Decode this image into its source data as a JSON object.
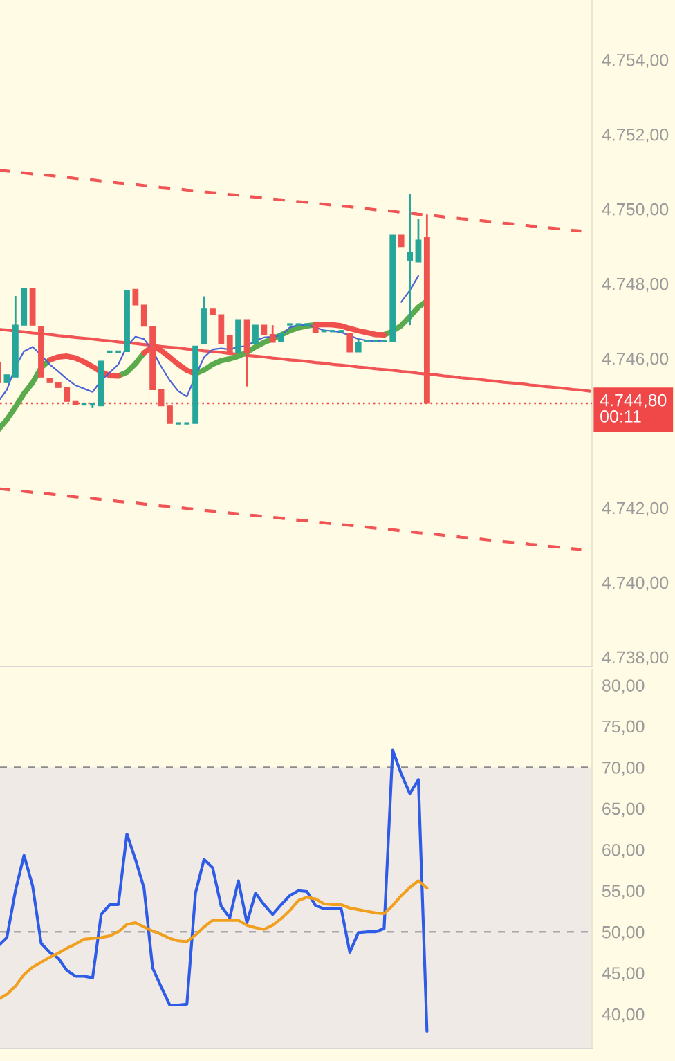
{
  "chart_data": [
    {
      "type": "candlestick",
      "categories": [
        null,
        null,
        null,
        null,
        null,
        null,
        null,
        null,
        null,
        null,
        null,
        null,
        null,
        null,
        null,
        null,
        null,
        null,
        null,
        null,
        null,
        null,
        null,
        null,
        null,
        null,
        null,
        null,
        null,
        null,
        null,
        null,
        null,
        null,
        null,
        null,
        null,
        null,
        null,
        null,
        null,
        null,
        null,
        null,
        null,
        null,
        null,
        null,
        null,
        null,
        null,
        null,
        null,
        null,
        null,
        null,
        null,
        null,
        null,
        null,
        null,
        null,
        null,
        null,
        null,
        null,
        null,
        null,
        null,
        null
      ],
      "ohlc": [
        [
          4745.9,
          4745.9,
          4745.35,
          4745.35
        ],
        [
          4745.35,
          4745.56,
          4745.35,
          4745.56
        ],
        [
          4745.5,
          4747.67,
          4745.5,
          4746.89
        ],
        [
          4746.89,
          4747.88,
          4746.89,
          4747.88
        ],
        [
          4747.88,
          4747.88,
          4746.89,
          4746.89
        ],
        [
          4746.85,
          4746.85,
          4745.5,
          4745.5
        ],
        [
          4745.47,
          4745.47,
          4745.35,
          4745.35
        ],
        [
          4745.35,
          4745.35,
          4745.22,
          4745.22
        ],
        [
          4745.22,
          4745.22,
          4744.85,
          4744.85
        ],
        [
          4744.85,
          4744.85,
          4744.77,
          4744.77
        ],
        [
          4744.77,
          4744.77,
          4744.77,
          4744.77
        ],
        [
          4744.77,
          4744.77,
          4744.67,
          4744.77
        ],
        [
          4744.73,
          4745.93,
          4744.73,
          4745.93
        ],
        [
          4746.18,
          4746.18,
          4746.18,
          4746.18
        ],
        [
          4746.18,
          4746.18,
          4746.18,
          4746.18
        ],
        [
          4746.18,
          4747.82,
          4746.18,
          4747.82
        ],
        [
          4747.85,
          4747.85,
          4747.43,
          4747.43
        ],
        [
          4747.43,
          4747.43,
          4746.86,
          4746.86
        ],
        [
          4746.86,
          4746.86,
          4745.16,
          4745.16
        ],
        [
          4745.16,
          4745.16,
          4744.73,
          4744.73
        ],
        [
          4744.73,
          4744.73,
          4744.26,
          4744.26
        ],
        [
          4744.26,
          4744.26,
          4744.26,
          4744.26
        ],
        [
          4744.26,
          4744.26,
          4744.26,
          4744.26
        ],
        [
          4744.26,
          4746.33,
          4744.26,
          4746.33
        ],
        [
          4746.39,
          4747.66,
          4746.39,
          4747.32
        ],
        [
          4747.32,
          4747.32,
          4747.17,
          4747.17
        ],
        [
          4747.17,
          4747.17,
          4746.4,
          4746.4
        ],
        [
          4746.62,
          4746.62,
          4746.15,
          4746.15
        ],
        [
          4746.15,
          4747.04,
          4746.15,
          4747.04
        ],
        [
          4747.04,
          4747.04,
          4745.25,
          4746.15
        ],
        [
          4746.4,
          4746.89,
          4746.4,
          4746.89
        ],
        [
          4746.89,
          4746.89,
          4746.64,
          4746.64
        ],
        [
          4746.64,
          4746.89,
          4746.43,
          4746.43
        ],
        [
          4746.46,
          4746.67,
          4746.46,
          4746.67
        ],
        [
          4746.91,
          4746.91,
          4746.91,
          4746.91
        ],
        [
          4746.91,
          4746.91,
          4746.91,
          4746.91
        ],
        [
          4746.91,
          4746.91,
          4746.91,
          4746.91
        ],
        [
          4746.91,
          4746.91,
          4746.7,
          4746.7
        ],
        [
          4746.73,
          4746.73,
          4746.73,
          4746.73
        ],
        [
          4746.73,
          4746.73,
          4746.73,
          4746.73
        ],
        [
          4746.73,
          4746.73,
          4746.73,
          4746.73
        ],
        [
          4746.67,
          4746.67,
          4746.17,
          4746.17
        ],
        [
          4746.17,
          4746.52,
          4746.17,
          4746.42
        ],
        [
          4746.46,
          4746.46,
          4746.46,
          4746.46
        ],
        [
          4746.46,
          4746.46,
          4746.46,
          4746.46
        ],
        [
          4746.46,
          4746.46,
          4746.46,
          4746.46
        ],
        [
          4746.46,
          4749.3,
          4746.46,
          4749.3
        ],
        [
          4749.3,
          4749.3,
          4748.99,
          4748.99
        ],
        [
          4748.62,
          4750.41,
          4746.89,
          4748.83
        ],
        [
          4748.58,
          4749.73,
          4748.58,
          4749.17
        ],
        [
          4749.24,
          4749.85,
          4744.8,
          4744.8
        ],
        null,
        null,
        null,
        null,
        null,
        null,
        null,
        null,
        null,
        null,
        null,
        null,
        null,
        null,
        null,
        null,
        null,
        null,
        null
      ],
      "colors": [
        "#ef5350",
        "#26a69a",
        "#26a69a",
        "#26a69a",
        "#ef5350",
        "#ef5350",
        "#ef5350",
        "#ef5350",
        "#ef5350",
        "#ef5350",
        "#26a69a",
        "#26a69a",
        "#26a69a",
        "#26a69a",
        "#26a69a",
        "#26a69a",
        "#ef5350",
        "#ef5350",
        "#ef5350",
        "#ef5350",
        "#ef5350",
        "#26a69a",
        "#26a69a",
        "#26a69a",
        "#26a69a",
        "#ef5350",
        "#ef5350",
        "#ef5350",
        "#26a69a",
        "#ef5350",
        "#26a69a",
        "#ef5350",
        "#ef5350",
        "#26a69a",
        "#26a69a",
        "#26a69a",
        "#26a69a",
        "#ef5350",
        "#26a69a",
        "#26a69a",
        "#26a69a",
        "#ef5350",
        "#26a69a",
        "#26a69a",
        "#26a69a",
        "#26a69a",
        "#26a69a",
        "#ef5350",
        "#26a69a",
        "#26a69a",
        "#ef5350",
        null,
        null,
        null,
        null,
        null,
        null,
        null,
        null,
        null,
        null,
        null,
        null,
        null,
        null,
        null,
        null,
        null,
        null,
        null
      ],
      "series": [
        {
          "type": "line",
          "color": "#f05454",
          "line_style": "dashed",
          "values": [
            4751.04,
            4751.02,
            4750.99,
            4750.97,
            4750.94,
            4750.92,
            4750.9,
            4750.87,
            4750.85,
            4750.82,
            4750.8,
            4750.78,
            4750.75,
            4750.73,
            4750.7,
            4750.68,
            4750.66,
            4750.63,
            4750.61,
            4750.58,
            4750.56,
            4750.54,
            4750.51,
            4750.49,
            4750.46,
            4750.44,
            4750.42,
            4750.39,
            4750.37,
            4750.34,
            4750.32,
            4750.3,
            4750.27,
            4750.25,
            4750.22,
            4750.2,
            4750.18,
            4750.15,
            4750.13,
            4750.1,
            4750.08,
            4750.06,
            4750.03,
            4750.01,
            4749.98,
            4749.96,
            4749.94,
            4749.91,
            4749.89,
            4749.86,
            4749.84,
            4749.82,
            4749.79,
            4749.77,
            4749.74,
            4749.72,
            4749.7,
            4749.67,
            4749.65,
            4749.62,
            4749.6,
            4749.58,
            4749.55,
            4749.53,
            4749.5,
            4749.48,
            4749.46,
            4749.43,
            4749.41,
            null
          ]
        },
        {
          "type": "line",
          "color": "#f05454",
          "line_style": "solid",
          "values": [
            4746.78,
            4746.76,
            4746.73,
            4746.71,
            4746.68,
            4746.66,
            4746.64,
            4746.61,
            4746.59,
            4746.56,
            4746.54,
            4746.52,
            4746.49,
            4746.47,
            4746.44,
            4746.42,
            4746.4,
            4746.37,
            4746.35,
            4746.32,
            4746.3,
            4746.28,
            4746.25,
            4746.23,
            4746.2,
            4746.18,
            4746.16,
            4746.13,
            4746.11,
            4746.08,
            4746.06,
            4746.04,
            4746.01,
            4745.99,
            4745.96,
            4745.94,
            4745.92,
            4745.89,
            4745.87,
            4745.84,
            4745.82,
            4745.8,
            4745.77,
            4745.75,
            4745.72,
            4745.7,
            4745.68,
            4745.65,
            4745.63,
            4745.6,
            4745.58,
            4745.56,
            4745.53,
            4745.51,
            4745.48,
            4745.46,
            4745.44,
            4745.41,
            4745.39,
            4745.36,
            4745.34,
            4745.32,
            4745.29,
            4745.27,
            4745.24,
            4745.22,
            4745.2,
            4745.17,
            4745.15,
            4745.12
          ]
        },
        {
          "type": "line",
          "color": "#f05454",
          "line_style": "dashed",
          "values": [
            4742.51,
            4742.49,
            4742.46,
            4742.44,
            4742.41,
            4742.39,
            4742.37,
            4742.34,
            4742.32,
            4742.29,
            4742.27,
            4742.25,
            4742.22,
            4742.2,
            4742.17,
            4742.15,
            4742.13,
            4742.1,
            4742.08,
            4742.05,
            4742.03,
            4742.01,
            4741.98,
            4741.96,
            4741.93,
            4741.91,
            4741.89,
            4741.86,
            4741.84,
            4741.81,
            4741.79,
            4741.77,
            4741.74,
            4741.72,
            4741.69,
            4741.67,
            4741.65,
            4741.62,
            4741.6,
            4741.57,
            4741.55,
            4741.53,
            4741.5,
            4741.48,
            4741.45,
            4741.43,
            4741.41,
            4741.38,
            4741.36,
            4741.33,
            4741.31,
            4741.29,
            4741.26,
            4741.24,
            4741.21,
            4741.19,
            4741.17,
            4741.14,
            4741.12,
            4741.09,
            4741.07,
            4741.05,
            4741.02,
            4741.0,
            4740.97,
            4740.95,
            4740.93,
            4740.9,
            4740.88,
            null
          ]
        },
        {
          "type": "line",
          "color": "#5aab4e",
          "values": [
            4744.09,
            4744.36,
            4744.7,
            4745.06,
            4745.35,
            4745.75,
            4745.96,
            null,
            null,
            null,
            null,
            null,
            null,
            null,
            4745.53,
            4745.63,
            4745.86,
            4746.15,
            null,
            null,
            null,
            null,
            null,
            4745.59,
            4745.69,
            4745.84,
            4745.94,
            4745.99,
            4746.06,
            4746.16,
            4746.31,
            4746.43,
            4746.52,
            4746.63,
            4746.74,
            4746.82,
            4746.87,
            4746.9,
            null,
            null,
            null,
            null,
            null,
            null,
            null,
            4746.63,
            4746.73,
            4746.88,
            4747.12,
            4747.37,
            4747.54,
            null,
            null,
            null,
            null,
            null,
            null,
            null,
            null,
            null,
            null,
            null,
            null,
            null,
            null,
            null,
            null,
            null,
            null,
            null
          ]
        },
        {
          "type": "line",
          "color": "#f0504c",
          "values": [
            null,
            null,
            null,
            null,
            null,
            null,
            4745.96,
            4746.04,
            4746.06,
            4746.01,
            4745.91,
            4745.78,
            4745.64,
            4745.54,
            4745.53,
            null,
            null,
            4746.15,
            4746.32,
            4746.21,
            4746.03,
            4745.84,
            4745.68,
            4745.59,
            null,
            null,
            null,
            null,
            null,
            null,
            null,
            null,
            null,
            null,
            null,
            null,
            null,
            4746.9,
            4746.91,
            4746.9,
            4746.87,
            4746.8,
            4746.74,
            4746.69,
            4746.64,
            4746.63,
            null,
            null,
            null,
            null,
            null,
            null,
            null,
            null,
            null,
            null,
            null,
            null,
            null,
            null,
            null,
            null,
            null,
            null,
            null,
            null,
            null,
            null,
            null,
            null
          ]
        },
        {
          "type": "line",
          "color": "#4a64d8",
          "values": [
            4744.85,
            4745.16,
            4745.78,
            4746.19,
            4746.31,
            4746.09,
            4745.84,
            4745.65,
            4745.45,
            4745.28,
            4745.19,
            4745.1,
            4745.41,
            4745.62,
            4745.84,
            4746.33,
            4746.58,
            4746.52,
            4746.21,
            4745.78,
            4745.41,
            4745.12,
            4744.98,
            4745.53,
            4746.03,
            4746.24,
            4746.27,
            4746.24,
            4746.31,
            4746.33,
            4746.48,
            4746.56,
            4746.58,
            4746.61,
            4746.83,
            4746.89,
            4746.9,
            4746.83,
            4746.75,
            4746.73,
            4746.7,
            4746.61,
            4746.52,
            4746.48,
            4746.46,
            4746.48,
            null,
            4747.51,
            4747.82,
            4748.21,
            null,
            null,
            null,
            null,
            null,
            null,
            null,
            null,
            null,
            null,
            null,
            null,
            null,
            null,
            null,
            null,
            null,
            null,
            null,
            null
          ]
        }
      ],
      "ylim": [
        4737.74,
        4755.6
      ],
      "yticks": [
        {
          "value": 4738,
          "label": "4.738,00"
        },
        {
          "value": 4740,
          "label": "4.740,00"
        },
        {
          "value": 4742,
          "label": "4.742,00"
        },
        {
          "value": 4746,
          "label": "4.746,00"
        },
        {
          "value": 4748,
          "label": "4.748,00"
        },
        {
          "value": 4750,
          "label": "4.750,00"
        },
        {
          "value": 4752,
          "label": "4.752,00"
        },
        {
          "value": 4754,
          "label": "4.754,00"
        }
      ],
      "ref_lines": [
        {
          "axis": "y",
          "value": 4744.8,
          "label": "4.744,80\n00:11",
          "color": "#f04848",
          "line_style": "dotted"
        }
      ],
      "tick_labels": "y"
    },
    {
      "type": "line",
      "categories": [
        null,
        null,
        null,
        null,
        null,
        null,
        null,
        null,
        null,
        null,
        null,
        null,
        null,
        null,
        null,
        null,
        null,
        null,
        null,
        null,
        null,
        null,
        null,
        null,
        null,
        null,
        null,
        null,
        null,
        null,
        null,
        null,
        null,
        null,
        null,
        null,
        null,
        null,
        null,
        null,
        null,
        null,
        null,
        null,
        null,
        null,
        null,
        null,
        null,
        null,
        null,
        null,
        null,
        null,
        null,
        null,
        null,
        null,
        null,
        null,
        null,
        null,
        null,
        null,
        null,
        null,
        null,
        null,
        null,
        null
      ],
      "series": [
        {
          "color": "#2e5ce6",
          "values": [
            48.3,
            49.3,
            55.0,
            59.3,
            55.6,
            48.6,
            47.5,
            46.8,
            45.3,
            44.6,
            44.6,
            44.4,
            52.1,
            53.3,
            53.3,
            61.9,
            58.8,
            55.3,
            45.6,
            43.3,
            41.1,
            41.1,
            41.2,
            54.7,
            58.8,
            57.8,
            53.1,
            51.7,
            56.2,
            51.1,
            54.7,
            53.3,
            52.1,
            53.3,
            54.4,
            55.0,
            54.9,
            53.2,
            52.8,
            52.8,
            52.8,
            47.5,
            49.9,
            50.0,
            50.0,
            50.4,
            72.1,
            69.2,
            66.8,
            68.5,
            37.9,
            null,
            null,
            null,
            null,
            null,
            null,
            null,
            null,
            null,
            null,
            null,
            null,
            null,
            null,
            null,
            null,
            null,
            null,
            null
          ]
        },
        {
          "color": "#f0a01e",
          "values": [
            41.8,
            42.4,
            43.4,
            44.8,
            45.7,
            46.3,
            46.9,
            47.4,
            48.0,
            48.5,
            49.1,
            49.2,
            49.3,
            49.5,
            50.0,
            50.9,
            51.1,
            50.6,
            50.1,
            49.7,
            49.2,
            48.9,
            48.8,
            49.6,
            50.6,
            51.4,
            51.4,
            51.4,
            51.4,
            50.8,
            50.5,
            50.3,
            50.8,
            51.6,
            52.6,
            53.8,
            54.2,
            54.0,
            53.4,
            53.3,
            53.3,
            52.9,
            52.7,
            52.5,
            52.3,
            52.2,
            53.2,
            54.4,
            55.4,
            56.2,
            55.3,
            null,
            null,
            null,
            null,
            null,
            null,
            null,
            null,
            null,
            null,
            null,
            null,
            null,
            null,
            null,
            null,
            null,
            null,
            null
          ]
        }
      ],
      "ylim": [
        35.8,
        81.9
      ],
      "yticks": [
        {
          "value": 40,
          "label": "40,00"
        },
        {
          "value": 45,
          "label": "45,00"
        },
        {
          "value": 50,
          "label": "50,00"
        },
        {
          "value": 55,
          "label": "55,00"
        },
        {
          "value": 60,
          "label": "60,00"
        },
        {
          "value": 65,
          "label": "65,00"
        },
        {
          "value": 70,
          "label": "70,00"
        },
        {
          "value": 75,
          "label": "75,00"
        },
        {
          "value": 80,
          "label": "80,00"
        }
      ],
      "ref_lines": [
        {
          "axis": "y",
          "value": 70,
          "color": "#8c8c8c",
          "line_style": "dashed"
        },
        {
          "axis": "y",
          "value": 50,
          "color": "#a8a8a8",
          "line_style": "dashed"
        }
      ],
      "bands": [
        {
          "axis": "y",
          "from": 35.8,
          "to": 70,
          "color": "#efeae6"
        }
      ],
      "tick_labels": "y"
    }
  ]
}
